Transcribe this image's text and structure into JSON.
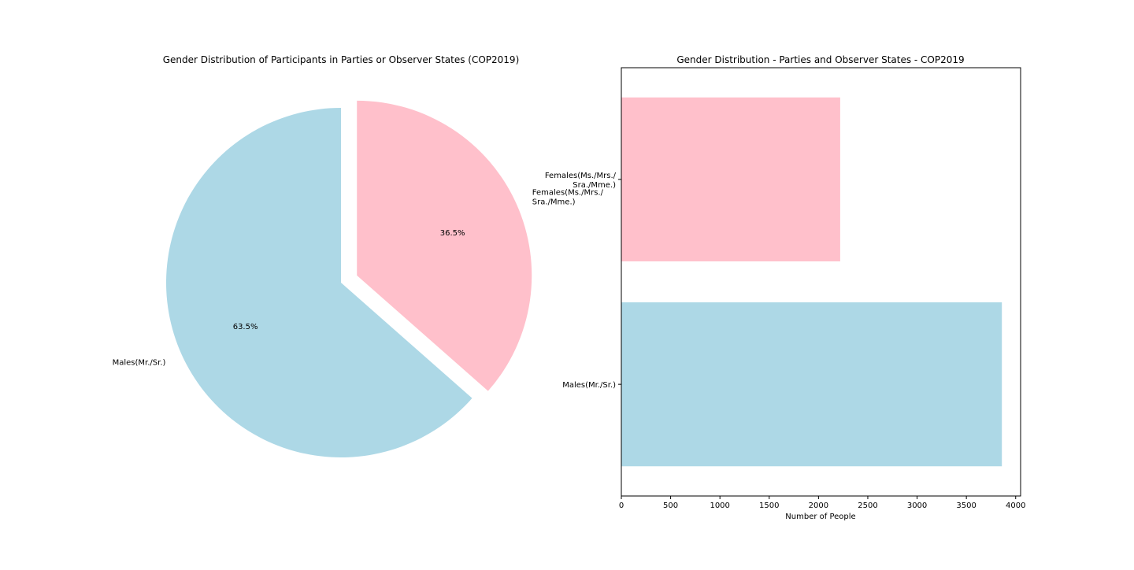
{
  "chart_data": [
    {
      "type": "pie",
      "title": "Gender Distribution of Participants in Parties or Observer States (COP2019)",
      "slices": [
        {
          "label_lines": [
            "Males(Mr./Sr.)"
          ],
          "percent": 63.5,
          "percent_label": "63.5%",
          "color": "#add8e6",
          "exploded": false
        },
        {
          "label_lines": [
            "Females(Ms./Mrs./",
            "Sra./Mme.)"
          ],
          "percent": 36.5,
          "percent_label": "36.5%",
          "color": "#ffc0cb",
          "exploded": true
        }
      ],
      "start_angle_deg": 90,
      "direction": "counterclockwise"
    },
    {
      "type": "bar",
      "orientation": "horizontal",
      "title": "Gender Distribution - Parties and Observer States - COP2019",
      "xlabel": "Number of People",
      "ylabel": "",
      "xlim": [
        0,
        4050
      ],
      "xticks": [
        "0",
        "500",
        "1000",
        "1500",
        "2000",
        "2500",
        "3000",
        "3500",
        "4000"
      ],
      "categories": [
        {
          "label_lines": [
            "Males(Mr./Sr.)"
          ],
          "value": 3860,
          "color": "#add8e6"
        },
        {
          "label_lines": [
            "Females(Ms./Mrs./",
            "Sra./Mme.)"
          ],
          "value": 2220,
          "color": "#ffc0cb"
        }
      ],
      "grid": false
    }
  ]
}
